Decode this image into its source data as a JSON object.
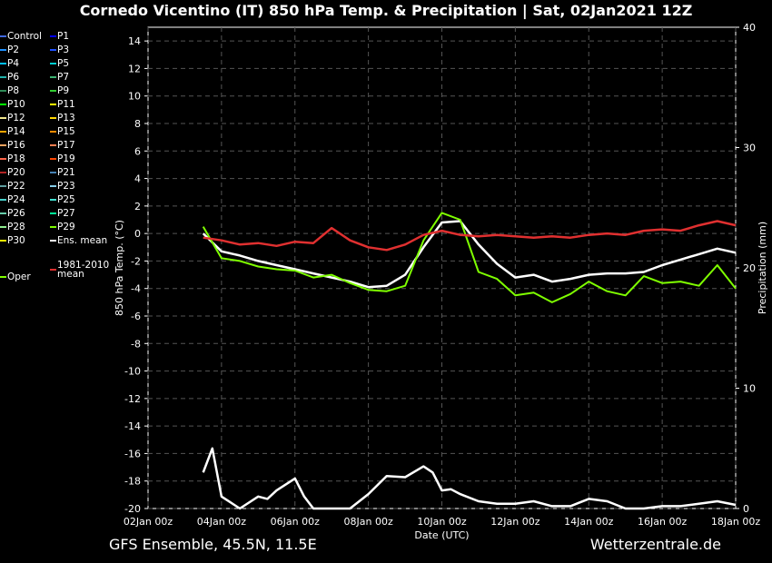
{
  "title": "Cornedo Vicentino  (IT)  850 hPa Temp. & Precipitation | Sat, 02Jan2021 12Z",
  "footer_left": "GFS Ensemble, 45.5N, 11.5E",
  "footer_right": "Wetterzentrale.de",
  "legend": [
    {
      "label": "Control",
      "color": "#4169e1"
    },
    {
      "label": "P1",
      "color": "#0000ff"
    },
    {
      "label": "P2",
      "color": "#1e90ff"
    },
    {
      "label": "P3",
      "color": "#1e50ff"
    },
    {
      "label": "P4",
      "color": "#00bfff"
    },
    {
      "label": "P5",
      "color": "#00ced1"
    },
    {
      "label": "P6",
      "color": "#20b2aa"
    },
    {
      "label": "P7",
      "color": "#3cb371"
    },
    {
      "label": "P8",
      "color": "#2e8b57"
    },
    {
      "label": "P9",
      "color": "#32cd32"
    },
    {
      "label": "P10",
      "color": "#00ff00"
    },
    {
      "label": "P11",
      "color": "#ffff00"
    },
    {
      "label": "P12",
      "color": "#f0e68c"
    },
    {
      "label": "P13",
      "color": "#ffd700"
    },
    {
      "label": "P14",
      "color": "#ffa500"
    },
    {
      "label": "P15",
      "color": "#ff8c00"
    },
    {
      "label": "P16",
      "color": "#f4a460"
    },
    {
      "label": "P17",
      "color": "#ff7f50"
    },
    {
      "label": "P18",
      "color": "#ff6347"
    },
    {
      "label": "P19",
      "color": "#ff4500"
    },
    {
      "label": "P20",
      "color": "#b22222"
    },
    {
      "label": "P21",
      "color": "#4682b4"
    },
    {
      "label": "P22",
      "color": "#5f9ea0"
    },
    {
      "label": "P23",
      "color": "#87ceeb"
    },
    {
      "label": "P24",
      "color": "#48d1cc"
    },
    {
      "label": "P25",
      "color": "#40e0d0"
    },
    {
      "label": "P26",
      "color": "#66cdaa"
    },
    {
      "label": "P27",
      "color": "#00fa9a"
    },
    {
      "label": "P28",
      "color": "#90ee90"
    },
    {
      "label": "P29",
      "color": "#7cfc00"
    },
    {
      "label": "P30",
      "color": "#eeee00"
    },
    {
      "label": "Ens. mean",
      "color": "#ffffff"
    },
    {
      "label": "Oper",
      "color": "#7fff00"
    },
    {
      "label": "1981-2010\nmean",
      "color": "#e03030"
    }
  ],
  "chart_data": {
    "type": "line",
    "xlabel": "Date (UTC)",
    "ylabel": "850 hPa Temp. (°C)",
    "y2label": "Precipitation (mm)",
    "ylim": [
      -20,
      15
    ],
    "y2lim": [
      0,
      40
    ],
    "yticks": [
      14,
      12,
      10,
      8,
      6,
      4,
      2,
      0,
      -2,
      -4,
      -6,
      -8,
      -10,
      -12,
      -14,
      -16,
      -18,
      -20
    ],
    "y2ticks": [
      0,
      10,
      20,
      30,
      40
    ],
    "xticks": [
      "02Jan 00z",
      "04Jan 00z",
      "06Jan 00z",
      "08Jan 00z",
      "10Jan 00z",
      "12Jan 00z",
      "14Jan 00z",
      "16Jan 00z",
      "18Jan 00z"
    ],
    "xrange_days": [
      0,
      16
    ],
    "grid": true,
    "series": [
      {
        "name": "Ens. mean",
        "color": "#ffffff",
        "width": 2.5,
        "x": [
          1.5,
          2,
          2.5,
          3,
          3.5,
          4,
          4.5,
          5,
          5.5,
          6,
          6.5,
          7,
          7.5,
          8,
          8.5,
          9,
          9.5,
          10,
          10.5,
          11,
          11.5,
          12,
          12.5,
          13,
          13.5,
          14,
          14.5,
          15,
          15.5,
          16
        ],
        "y": [
          0,
          -1.3,
          -1.6,
          -2,
          -2.3,
          -2.6,
          -2.9,
          -3.2,
          -3.5,
          -3.9,
          -3.8,
          -3.0,
          -1.0,
          0.8,
          0.9,
          -0.8,
          -2.2,
          -3.2,
          -3.0,
          -3.5,
          -3.3,
          -3.0,
          -2.9,
          -2.9,
          -2.8,
          -2.3,
          -1.9,
          -1.5,
          -1.1,
          -1.4
        ]
      },
      {
        "name": "Oper",
        "color": "#7fff00",
        "width": 2,
        "x": [
          1.5,
          2,
          2.5,
          3,
          3.5,
          4,
          4.5,
          5,
          5.5,
          6,
          6.5,
          7,
          7.5,
          8,
          8.5,
          9,
          9.5,
          10,
          10.5,
          11,
          11.5,
          12,
          12.5,
          13,
          13.5,
          14,
          14.5,
          15,
          15.5,
          16
        ],
        "y": [
          0.5,
          -1.8,
          -2.0,
          -2.4,
          -2.6,
          -2.7,
          -3.2,
          -3.0,
          -3.6,
          -4.1,
          -4.2,
          -3.8,
          -0.5,
          1.5,
          1.0,
          -2.8,
          -3.3,
          -4.5,
          -4.3,
          -5.0,
          -4.4,
          -3.5,
          -4.2,
          -4.5,
          -3.1,
          -3.6,
          -3.5,
          -3.8,
          -2.3,
          -4.0
        ]
      },
      {
        "name": "1981-2010 mean",
        "color": "#e03030",
        "width": 2.5,
        "x": [
          1.5,
          2,
          2.5,
          3,
          3.5,
          4,
          4.5,
          5,
          5.5,
          6,
          6.5,
          7,
          7.5,
          8,
          8.5,
          9,
          9.5,
          10,
          10.5,
          11,
          11.5,
          12,
          12.5,
          13,
          13.5,
          14,
          14.5,
          15,
          15.5,
          16
        ],
        "y": [
          -0.3,
          -0.5,
          -0.8,
          -0.7,
          -0.9,
          -0.6,
          -0.7,
          0.4,
          -0.5,
          -1.0,
          -1.2,
          -0.8,
          -0.1,
          0.2,
          -0.1,
          -0.2,
          -0.1,
          -0.2,
          -0.3,
          -0.2,
          -0.3,
          -0.1,
          0,
          -0.1,
          0.2,
          0.3,
          0.2,
          0.6,
          0.9,
          0.6
        ]
      },
      {
        "name": "Ens. mean precip",
        "color": "#ffffff",
        "width": 2.5,
        "axis": "y2",
        "x": [
          1.5,
          1.75,
          2,
          2.5,
          3,
          3.25,
          3.5,
          4,
          4.25,
          4.5,
          5,
          5.5,
          6,
          6.5,
          7,
          7.5,
          7.75,
          8,
          8.25,
          8.5,
          9,
          9.5,
          10,
          10.5,
          11,
          11.5,
          12,
          12.5,
          13,
          13.5,
          14,
          14.5,
          15,
          15.5,
          16
        ],
        "y": [
          3,
          5,
          1,
          0,
          1.0,
          0.8,
          1.5,
          2.5,
          1.0,
          0,
          0,
          0,
          1.2,
          2.7,
          2.6,
          3.5,
          3.0,
          1.5,
          1.6,
          1.2,
          0.6,
          0.4,
          0.4,
          0.6,
          0.2,
          0.2,
          0.8,
          0.6,
          0,
          0,
          0.2,
          0.2,
          0.4,
          0.6,
          0.3
        ]
      }
    ]
  }
}
